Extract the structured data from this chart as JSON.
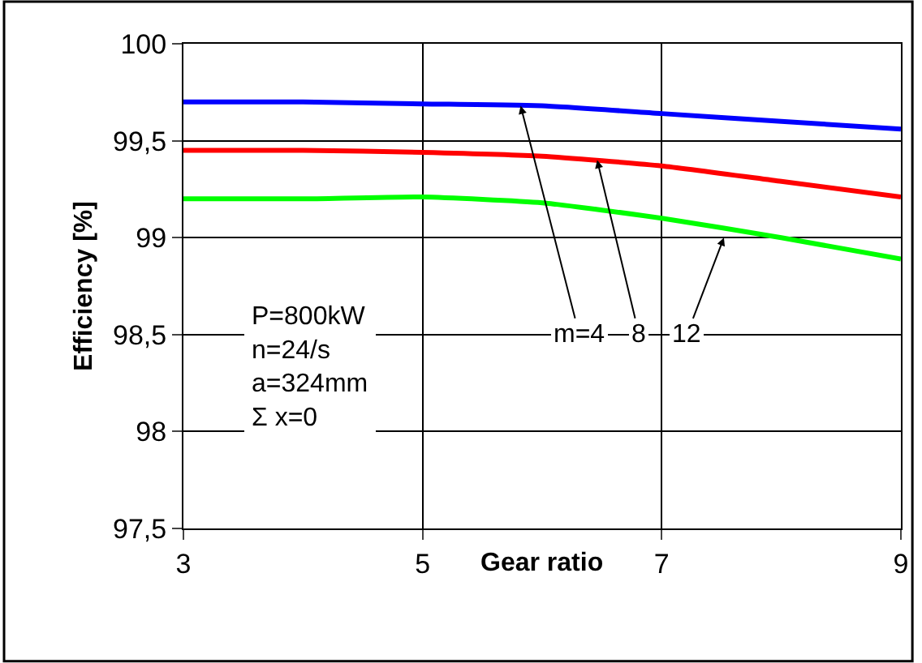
{
  "chart_data": {
    "type": "line",
    "xlabel": "Gear ratio",
    "ylabel": "Efficiency [%]",
    "x": [
      3,
      4,
      5,
      6,
      7,
      8,
      9
    ],
    "series": [
      {
        "color": "#0000ff",
        "values": [
          99.7,
          99.7,
          99.69,
          99.68,
          99.64,
          99.6,
          99.56
        ]
      },
      {
        "color": "#ff0000",
        "values": [
          99.45,
          99.45,
          99.44,
          99.42,
          99.37,
          99.29,
          99.21
        ]
      },
      {
        "color": "#00ff00",
        "values": [
          99.2,
          99.2,
          99.21,
          99.18,
          99.1,
          99.0,
          98.89
        ]
      }
    ],
    "xlim": [
      3,
      9
    ],
    "xticks": [
      3,
      5,
      7,
      9
    ],
    "ylim": [
      97.5,
      100
    ],
    "yticks": [
      {
        "value": 97.5,
        "label": "97,5"
      },
      98,
      {
        "value": 98.5,
        "label": "98,5"
      },
      99,
      {
        "value": 99.5,
        "label": "99,5"
      },
      100
    ],
    "grid": true,
    "legend": false,
    "marker": "none",
    "line_style": "solid",
    "annotations": [
      "P=800kW\nn=24/s\na=324mm\nΣ x=0",
      {
        "text": "m=4",
        "x": 5.82,
        "y": 99.68
      },
      {
        "text": "8",
        "x": 6.46,
        "y": 99.4
      },
      {
        "text": "12",
        "x": 7.52,
        "y": 99.0
      }
    ]
  }
}
